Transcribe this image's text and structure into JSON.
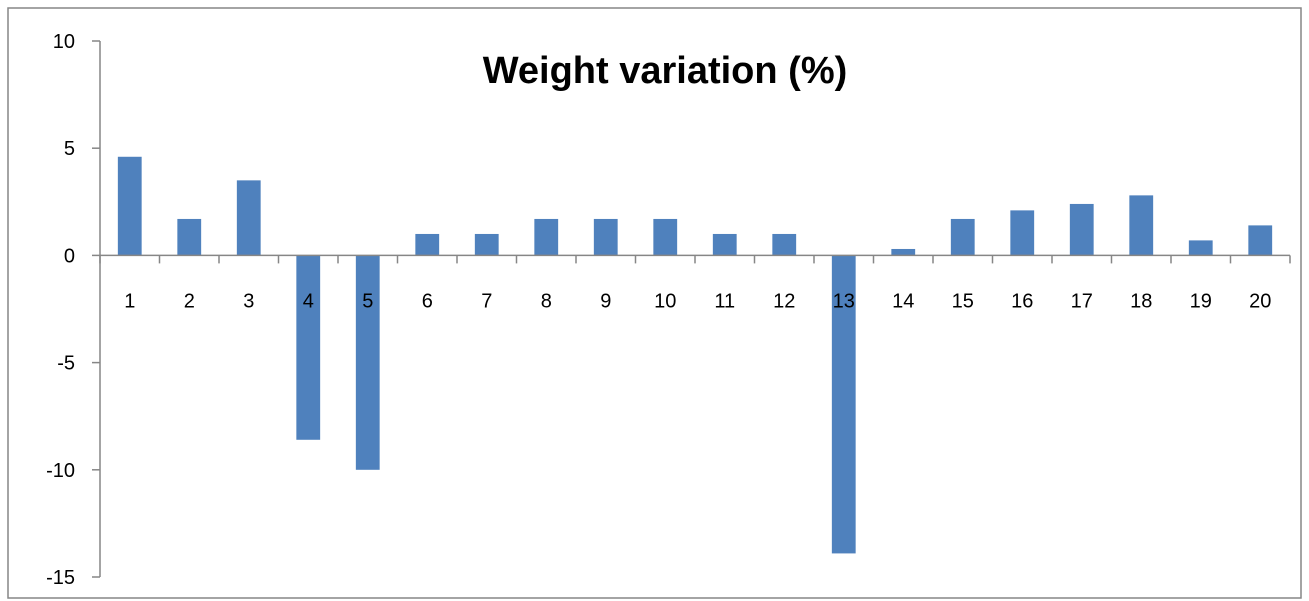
{
  "chart_data": {
    "type": "bar",
    "title": "Weight variation (%)",
    "xlabel": "",
    "ylabel": "",
    "categories": [
      "1",
      "2",
      "3",
      "4",
      "5",
      "6",
      "7",
      "8",
      "9",
      "10",
      "11",
      "12",
      "13",
      "14",
      "15",
      "16",
      "17",
      "18",
      "19",
      "20"
    ],
    "values": [
      4.6,
      1.7,
      3.5,
      -8.6,
      -10.0,
      1.0,
      1.0,
      1.7,
      1.7,
      1.7,
      1.0,
      1.0,
      -13.9,
      0.3,
      1.7,
      2.1,
      2.4,
      2.8,
      0.7,
      1.4
    ],
    "ylim": [
      -15,
      10
    ],
    "yticks": [
      "10",
      "5",
      "0",
      "-5",
      "-10",
      "-15"
    ],
    "grid": false,
    "legend": "none",
    "bar_color": "#4f81bd",
    "axis_color": "#868686"
  }
}
